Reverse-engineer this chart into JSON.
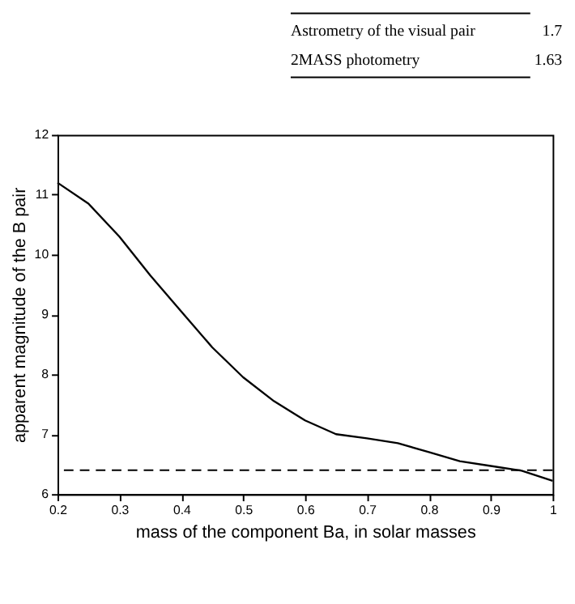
{
  "chart_data": {
    "type": "line",
    "xlabel": "mass of the component Ba, in solar masses",
    "ylabel": "apparent magnitude of the B pair",
    "x": [
      0.2,
      0.25,
      0.3,
      0.35,
      0.4,
      0.45,
      0.5,
      0.55,
      0.6,
      0.65,
      0.7,
      0.75,
      0.8,
      0.85,
      0.9,
      0.95,
      1.0
    ],
    "series": [
      {
        "color": "#000000",
        "values": [
          11.2,
          10.85,
          10.3,
          9.65,
          9.05,
          8.45,
          7.95,
          7.55,
          7.23,
          7.0,
          6.93,
          6.85,
          6.7,
          6.55,
          6.47,
          6.39,
          6.22
        ]
      }
    ],
    "xlim": [
      0.2,
      1.0
    ],
    "xticks": [
      0.2,
      0.3,
      0.4,
      0.5,
      0.6,
      0.7,
      0.8,
      0.9,
      {
        "value": 1.0,
        "label": "1"
      }
    ],
    "ylim": [
      6,
      12
    ],
    "yticks": [
      6,
      7,
      8,
      9,
      10,
      11,
      12
    ],
    "ref_lines": [
      {
        "axis": "y",
        "value": 6.4,
        "color": "#000000",
        "line_style": "dashed"
      }
    ],
    "grid": false,
    "marker": "none",
    "line_style": "solid",
    "annotations": [
      "Astrometry of the visual pair",
      "1.7",
      "2MASS photometry",
      "1.63"
    ]
  }
}
